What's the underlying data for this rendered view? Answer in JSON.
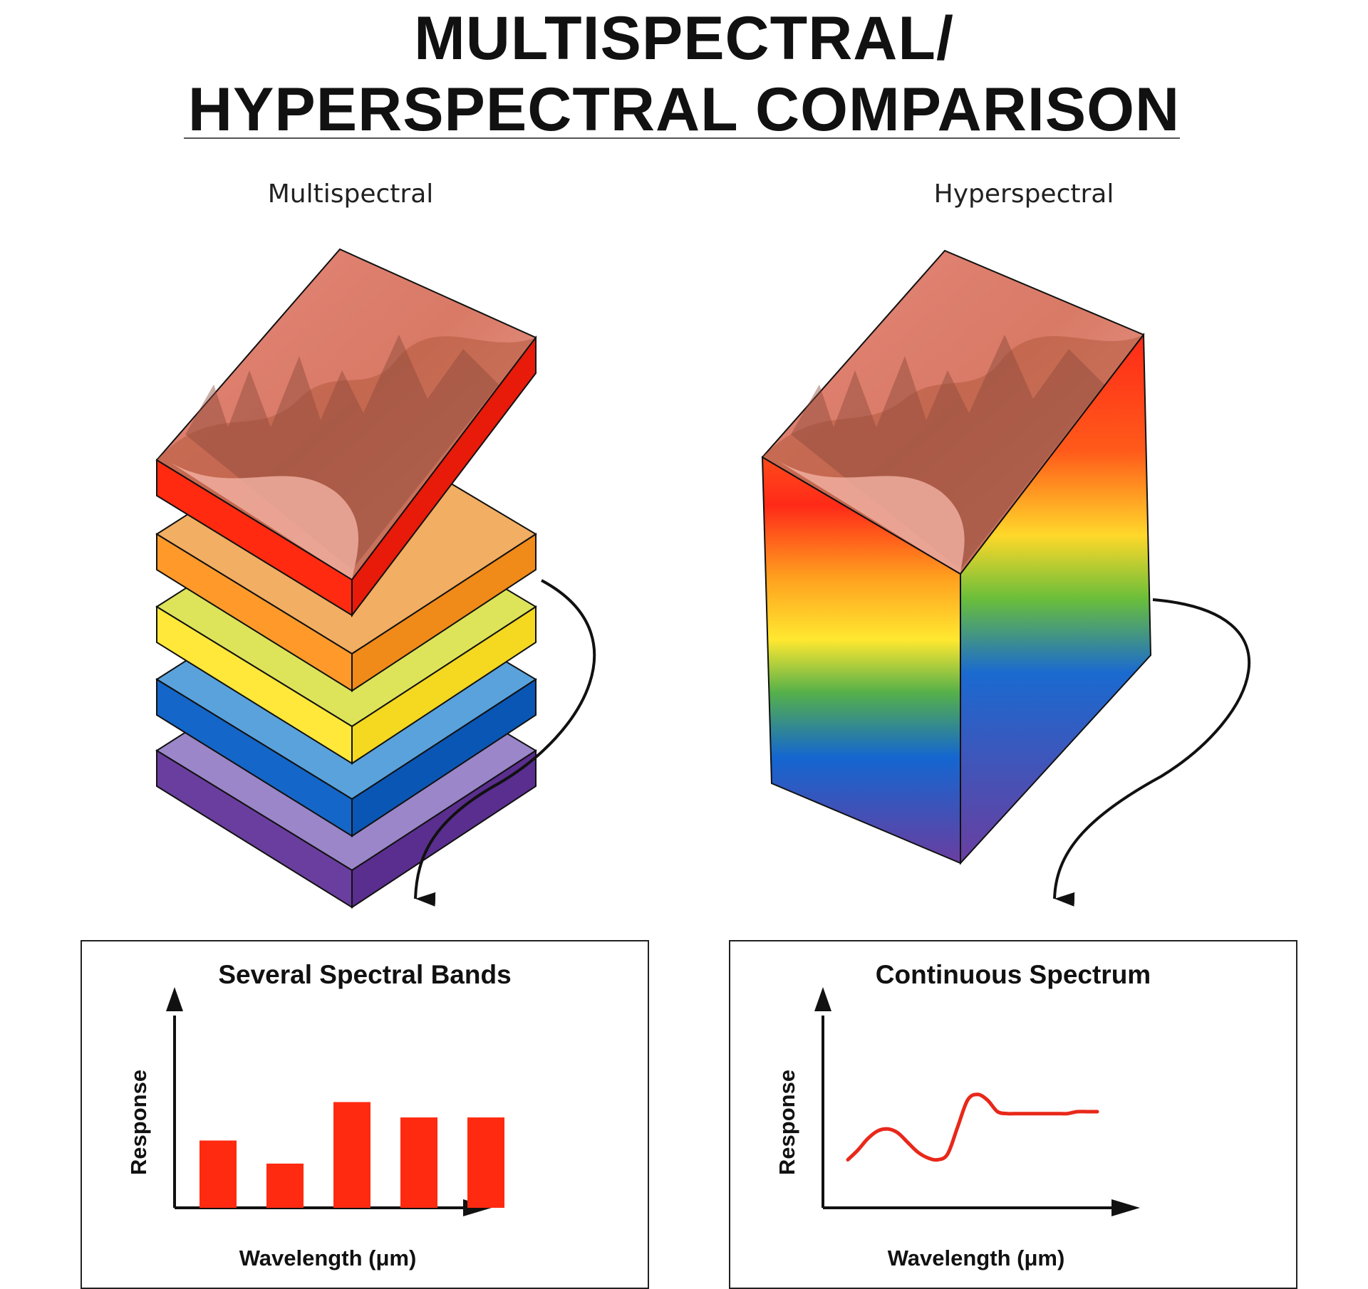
{
  "header": {
    "title_line1": "MULTISPECTRAL/",
    "title_line2": "HYPERSPECTRAL COMPARISON"
  },
  "columns": {
    "left_label": "Multispectral",
    "right_label": "Hyperspectral"
  },
  "colors": {
    "red": "#ff2a10",
    "orange": "#ff9a2a",
    "yellow": "#ffe83a",
    "blue": "#1466c8",
    "violet": "#6a3e9e",
    "line": "#e8281a",
    "ink": "#111111"
  },
  "chart_data": [
    {
      "type": "bar",
      "title": "Several Spectral Bands",
      "xlabel": "Wavelength (μm)",
      "ylabel": "Response",
      "categories": [
        "",
        "",
        "",
        "",
        ""
      ],
      "values": [
        0.35,
        0.23,
        0.55,
        0.47,
        0.47
      ],
      "ylim": [
        0,
        1
      ],
      "grid": false
    },
    {
      "type": "line",
      "title": "Continuous Spectrum",
      "xlabel": "Wavelength (μm)",
      "ylabel": "Response",
      "x": [
        0,
        0.04,
        0.08,
        0.12,
        0.16,
        0.2,
        0.24,
        0.28,
        0.32,
        0.36,
        0.4,
        0.44,
        0.48,
        0.52,
        0.56,
        0.6,
        0.64,
        0.68,
        0.72,
        0.76,
        0.8,
        0.84,
        0.88,
        0.92,
        0.96,
        1.0
      ],
      "y": [
        0.25,
        0.3,
        0.36,
        0.4,
        0.41,
        0.39,
        0.34,
        0.29,
        0.26,
        0.25,
        0.28,
        0.42,
        0.56,
        0.59,
        0.56,
        0.5,
        0.49,
        0.49,
        0.49,
        0.49,
        0.49,
        0.49,
        0.49,
        0.5,
        0.5,
        0.5
      ],
      "xlim": [
        0,
        1
      ],
      "ylim": [
        0,
        1
      ],
      "grid": false
    }
  ]
}
